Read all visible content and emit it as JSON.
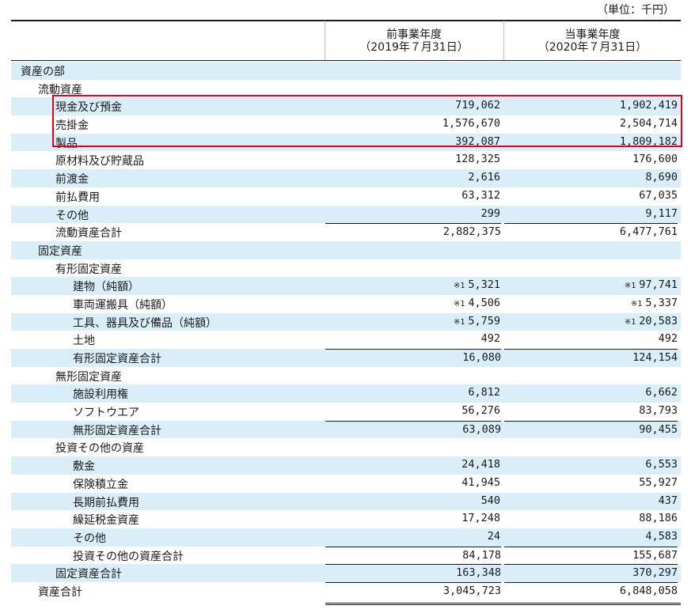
{
  "unit_label": "（単位：千円）",
  "columns": {
    "prev": {
      "line1": "前事業年度",
      "line2": "（2019年７月31日）"
    },
    "curr": {
      "line1": "当事業年度",
      "line2": "（2020年７月31日）"
    }
  },
  "rows": [
    {
      "label": "資産の部",
      "level": 0,
      "prev": "",
      "curr": "",
      "shade": true
    },
    {
      "label": "流動資産",
      "level": 1,
      "prev": "",
      "curr": "",
      "shade": false
    },
    {
      "label": "現金及び預金",
      "level": 2,
      "prev": "719,062",
      "curr": "1,902,419",
      "shade": true
    },
    {
      "label": "売掛金",
      "level": 2,
      "prev": "1,576,670",
      "curr": "2,504,714",
      "shade": false
    },
    {
      "label": "製品",
      "level": 2,
      "prev": "392,087",
      "curr": "1,809,182",
      "shade": true
    },
    {
      "label": "原材料及び貯蔵品",
      "level": 2,
      "prev": "128,325",
      "curr": "176,600",
      "shade": false
    },
    {
      "label": "前渡金",
      "level": 2,
      "prev": "2,616",
      "curr": "8,690",
      "shade": true
    },
    {
      "label": "前払費用",
      "level": 2,
      "prev": "63,312",
      "curr": "67,035",
      "shade": false
    },
    {
      "label": "その他",
      "level": 2,
      "prev": "299",
      "curr": "9,117",
      "shade": true
    },
    {
      "label": "流動資産合計",
      "level": 2,
      "prev": "2,882,375",
      "curr": "6,477,761",
      "shade": false,
      "subtotal": true
    },
    {
      "label": "固定資産",
      "level": 1,
      "prev": "",
      "curr": "",
      "shade": true
    },
    {
      "label": "有形固定資産",
      "level": 2,
      "prev": "",
      "curr": "",
      "shade": false
    },
    {
      "label": "建物（純額）",
      "level": 3,
      "prev": "5,321",
      "curr": "97,741",
      "prev_note": "※1",
      "curr_note": "※1",
      "shade": true
    },
    {
      "label": "車両運搬具（純額）",
      "level": 3,
      "prev": "4,506",
      "curr": "5,337",
      "prev_note": "※1",
      "curr_note": "※1",
      "shade": false
    },
    {
      "label": "工具、器具及び備品（純額）",
      "level": 3,
      "prev": "5,759",
      "curr": "20,583",
      "prev_note": "※1",
      "curr_note": "※1",
      "shade": true
    },
    {
      "label": "土地",
      "level": 3,
      "prev": "492",
      "curr": "492",
      "shade": false
    },
    {
      "label": "有形固定資産合計",
      "level": 3,
      "prev": "16,080",
      "curr": "124,154",
      "shade": true,
      "subtotal": true
    },
    {
      "label": "無形固定資産",
      "level": 2,
      "prev": "",
      "curr": "",
      "shade": false
    },
    {
      "label": "施設利用権",
      "level": 3,
      "prev": "6,812",
      "curr": "6,662",
      "shade": true
    },
    {
      "label": "ソフトウエア",
      "level": 3,
      "prev": "56,276",
      "curr": "83,793",
      "shade": false
    },
    {
      "label": "無形固定資産合計",
      "level": 3,
      "prev": "63,089",
      "curr": "90,455",
      "shade": true,
      "subtotal": true
    },
    {
      "label": "投資その他の資産",
      "level": 2,
      "prev": "",
      "curr": "",
      "shade": false
    },
    {
      "label": "敷金",
      "level": 3,
      "prev": "24,418",
      "curr": "6,553",
      "shade": true
    },
    {
      "label": "保険積立金",
      "level": 3,
      "prev": "41,945",
      "curr": "55,927",
      "shade": false
    },
    {
      "label": "長期前払費用",
      "level": 3,
      "prev": "540",
      "curr": "437",
      "shade": true
    },
    {
      "label": "繰延税金資産",
      "level": 3,
      "prev": "17,248",
      "curr": "88,186",
      "shade": false
    },
    {
      "label": "その他",
      "level": 3,
      "prev": "24",
      "curr": "4,583",
      "shade": true
    },
    {
      "label": "投資その他の資産合計",
      "level": 3,
      "prev": "84,178",
      "curr": "155,687",
      "shade": false,
      "subtotal": true
    },
    {
      "label": "固定資産合計",
      "level": 2,
      "prev": "163,348",
      "curr": "370,297",
      "shade": true,
      "subtotal": true
    },
    {
      "label": "資産合計",
      "level": 1,
      "prev": "3,045,723",
      "curr": "6,848,058",
      "shade": false,
      "subtotal": true
    }
  ],
  "highlight_color": "#e3001b",
  "shade_color": "#d9eef8"
}
